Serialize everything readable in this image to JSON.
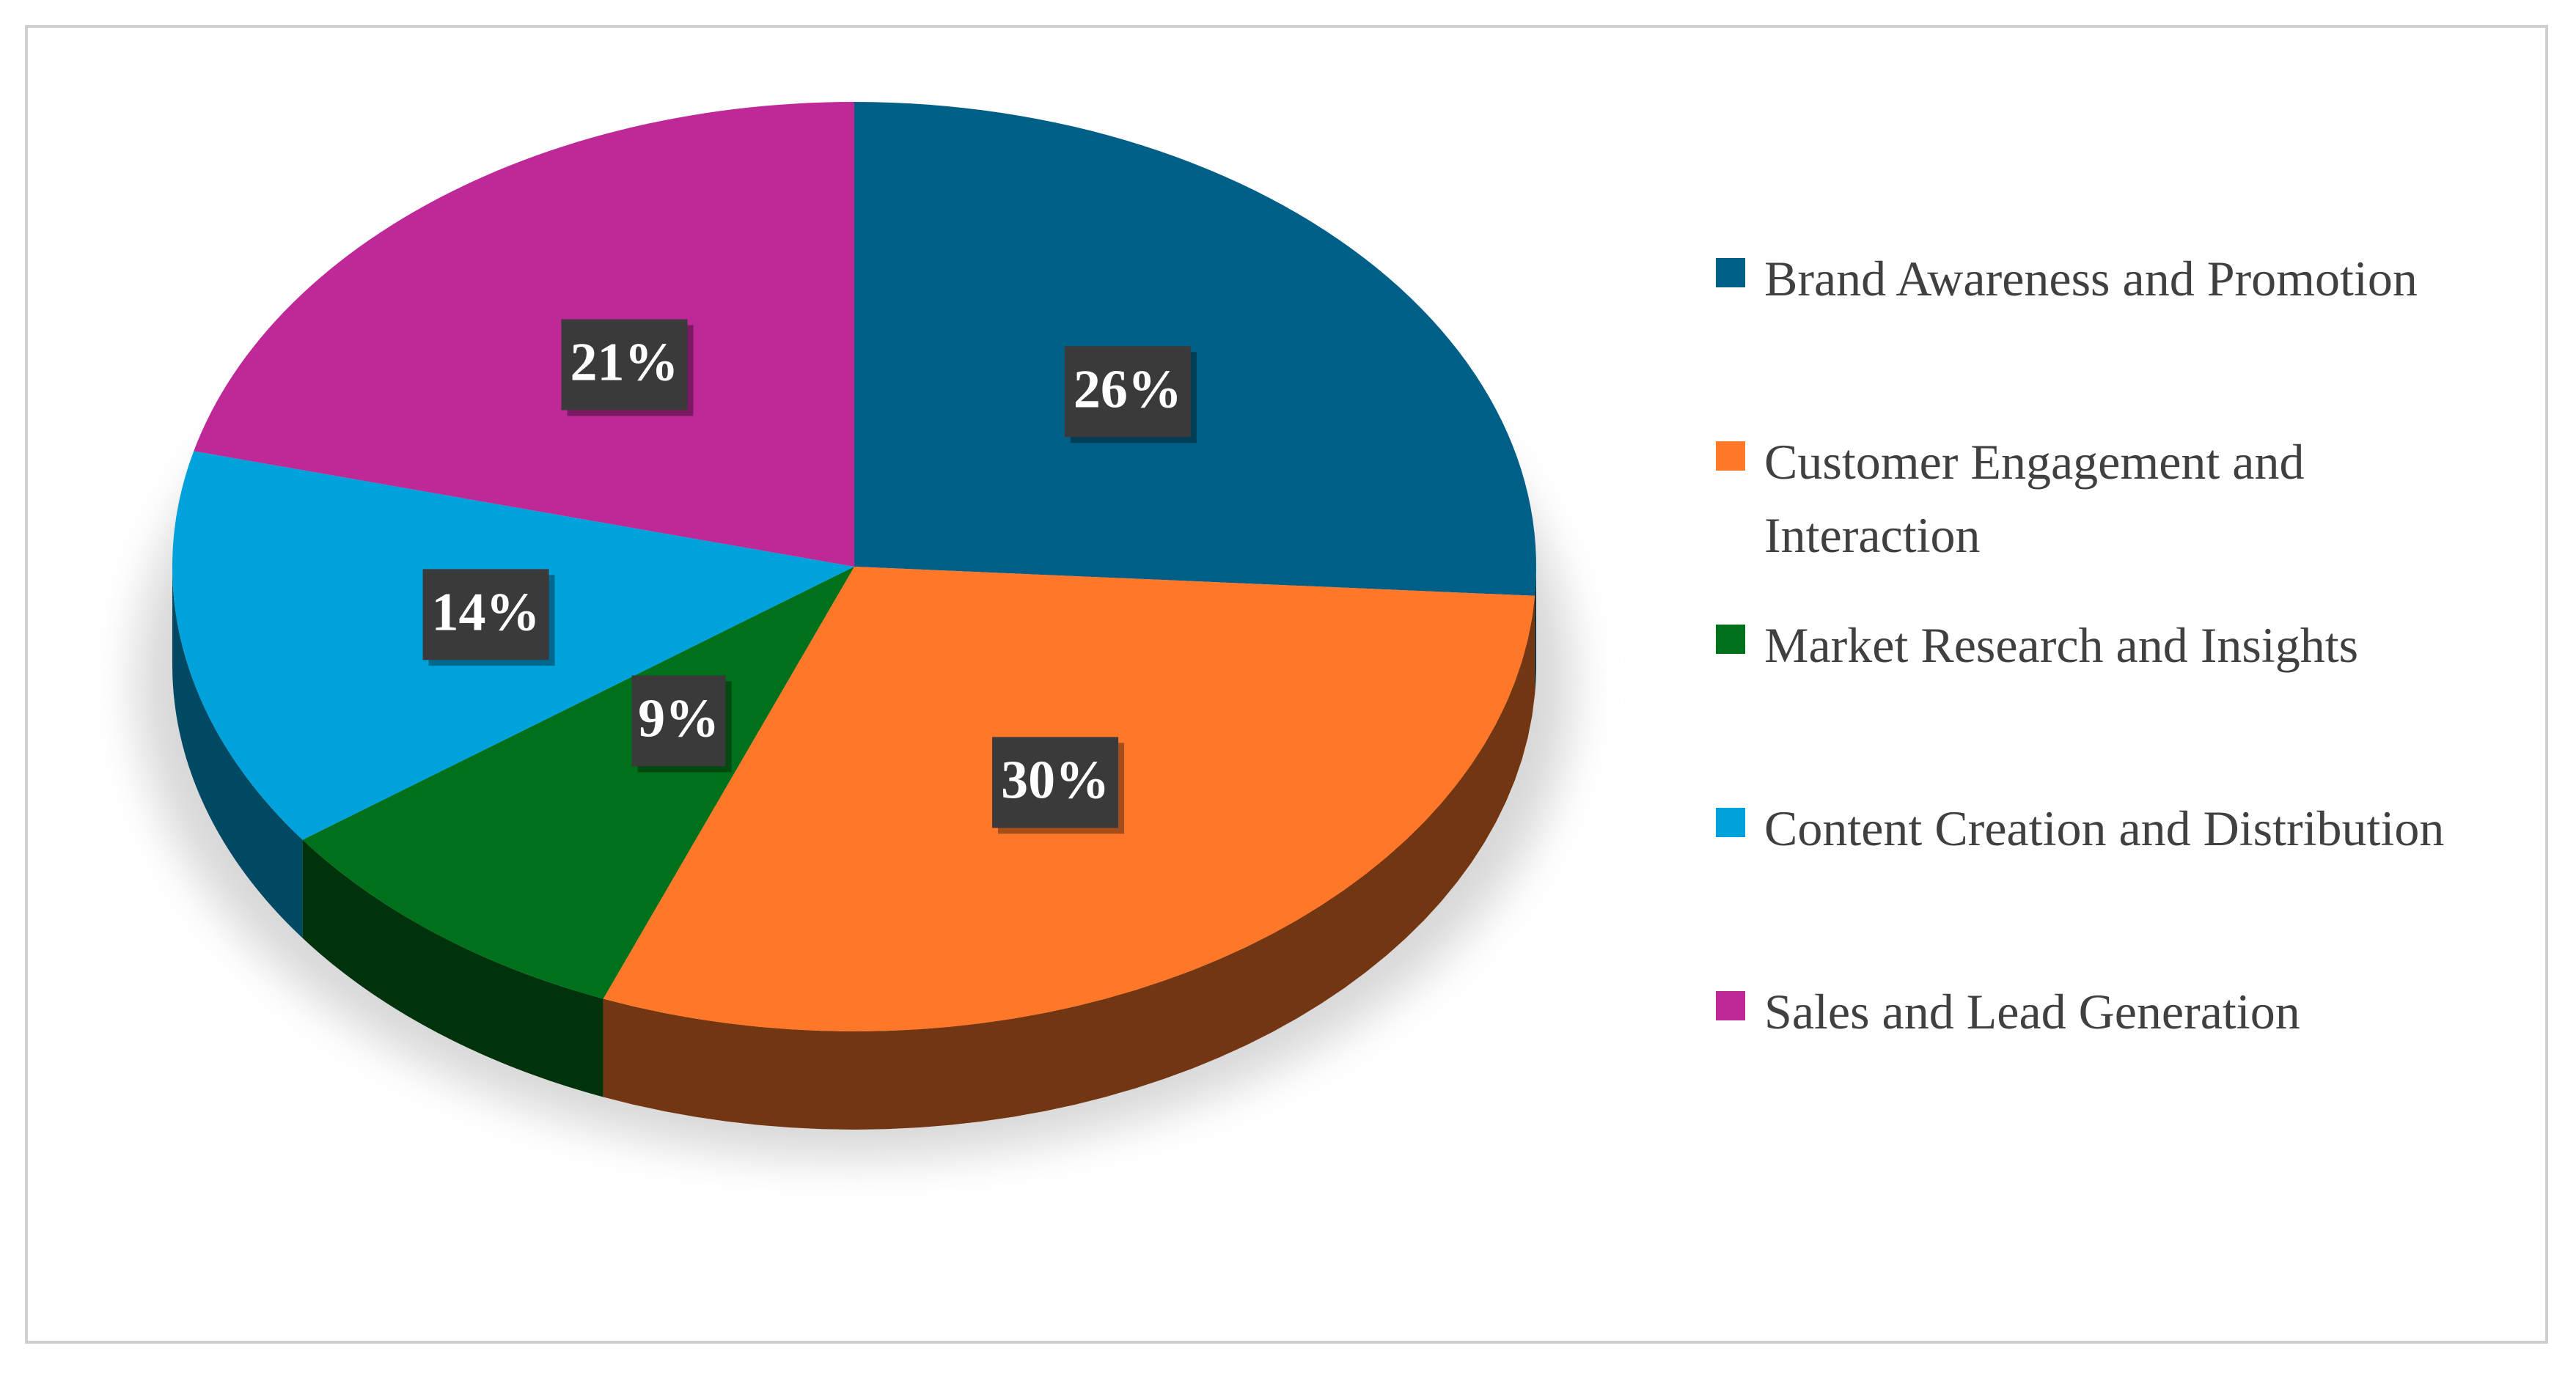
{
  "chart_data": {
    "type": "pie",
    "categories": [
      "Brand Awareness and Promotion",
      "Customer Engagement and Interaction",
      "Market Research and Insights",
      "Content Creation and Distribution",
      "Sales and Lead Generation"
    ],
    "values": [
      26,
      30,
      9,
      14,
      21
    ],
    "value_labels": [
      "26%",
      "30%",
      "9%",
      "14%",
      "21%"
    ],
    "colors": [
      "#005f86",
      "#ff7829",
      "#00701a",
      "#00a2dc",
      "#be2897"
    ],
    "legend": "right"
  }
}
